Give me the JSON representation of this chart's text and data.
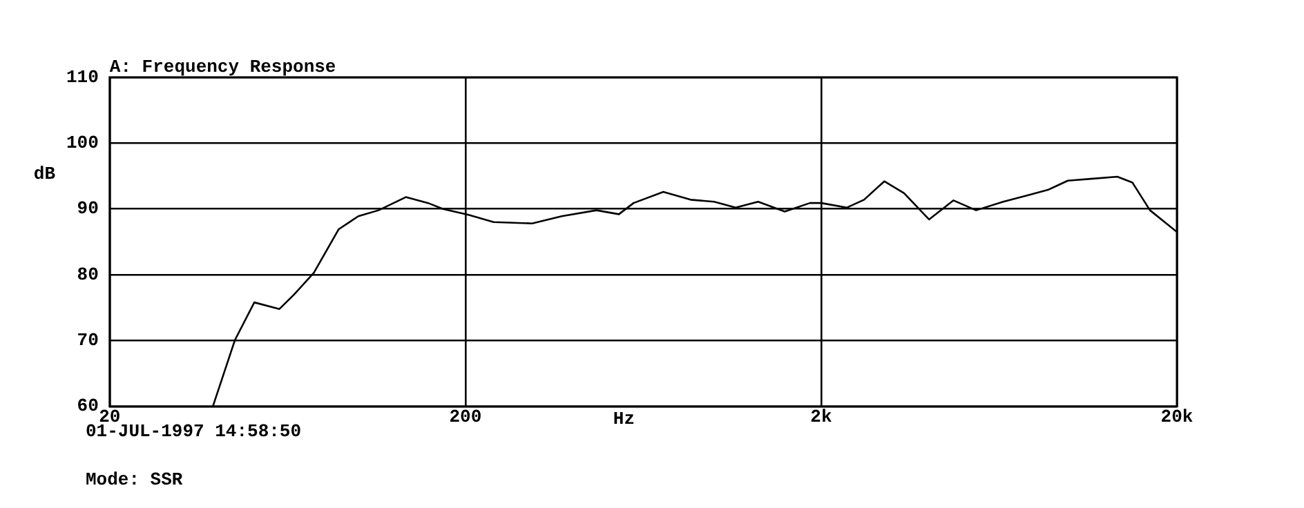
{
  "chart_data": {
    "type": "line",
    "title": "A: Frequency Response",
    "xlabel": "Hz",
    "ylabel": "dB",
    "x": [
      39,
      45,
      51,
      60,
      66,
      75,
      88,
      100,
      114,
      136,
      157,
      173,
      204,
      240,
      308,
      373,
      467,
      540,
      594,
      720,
      859,
      1000,
      1150,
      1330,
      1580,
      1860,
      2000,
      2360,
      2640,
      3010,
      3420,
      4020,
      4710,
      5450,
      6500,
      7640,
      8680,
      9870,
      11600,
      13600,
      15000,
      16800,
      20000
    ],
    "series": [
      {
        "color": "#000000",
        "values": [
          60,
          70.1,
          75.8,
          74.8,
          77,
          80.3,
          86.9,
          88.9,
          89.8,
          91.8,
          90.9,
          90,
          89.1,
          88,
          87.8,
          88.9,
          89.8,
          89.2,
          90.9,
          92.6,
          91.4,
          91.1,
          90.2,
          91.1,
          89.6,
          90.9,
          90.9,
          90.2,
          91.4,
          94.2,
          92.4,
          88.4,
          91.3,
          89.8,
          91.1,
          92.1,
          92.9,
          94.3,
          94.6,
          94.9,
          94,
          89.8,
          86.5
        ]
      }
    ],
    "xlim": [
      20,
      20000
    ],
    "ylim": [
      60,
      110
    ],
    "xticks": [
      20,
      200,
      {
        "value": 2000,
        "label": "2k"
      },
      {
        "value": 20000,
        "label": "20k"
      }
    ],
    "yticks": [
      60,
      70,
      80,
      90,
      100,
      110
    ],
    "log": "x",
    "grid": true,
    "marker": "none",
    "line_style": "solid",
    "annotations": [
      "01-JUL-1997 14:58:50",
      "Mode: SSR"
    ]
  }
}
